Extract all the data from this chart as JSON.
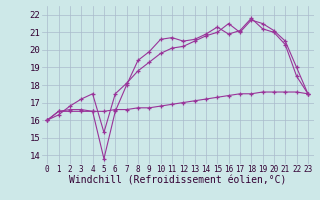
{
  "background_color": "#cde8e8",
  "grid_color": "#aabbcc",
  "line_color": "#993399",
  "xlabel": "Windchill (Refroidissement éolien,°C)",
  "xlabel_fontsize": 7,
  "ytick_fontsize": 6.5,
  "xtick_fontsize": 5.5,
  "ylim": [
    13.5,
    22.5
  ],
  "xlim": [
    -0.5,
    23.5
  ],
  "yticks": [
    14,
    15,
    16,
    17,
    18,
    19,
    20,
    21,
    22
  ],
  "xticks": [
    0,
    1,
    2,
    3,
    4,
    5,
    6,
    7,
    8,
    9,
    10,
    11,
    12,
    13,
    14,
    15,
    16,
    17,
    18,
    19,
    20,
    21,
    22,
    23
  ],
  "line1_x": [
    0,
    1,
    2,
    3,
    4,
    5,
    6,
    7,
    8,
    9,
    10,
    11,
    12,
    13,
    14,
    15,
    16,
    17,
    18,
    19,
    20,
    21,
    22,
    23
  ],
  "line1_y": [
    16.0,
    16.5,
    16.5,
    16.5,
    16.5,
    16.5,
    16.6,
    16.6,
    16.7,
    16.7,
    16.8,
    16.9,
    17.0,
    17.1,
    17.2,
    17.3,
    17.4,
    17.5,
    17.5,
    17.6,
    17.6,
    17.6,
    17.6,
    17.5
  ],
  "line2_x": [
    0,
    1,
    2,
    3,
    4,
    5,
    6,
    7,
    8,
    9,
    10,
    11,
    12,
    13,
    14,
    15,
    16,
    17,
    18,
    19,
    20,
    21,
    22,
    23
  ],
  "line2_y": [
    16.0,
    16.5,
    16.6,
    16.6,
    16.5,
    13.8,
    16.5,
    18.0,
    19.4,
    19.9,
    20.6,
    20.7,
    20.5,
    20.6,
    20.9,
    21.3,
    20.9,
    21.1,
    21.8,
    21.2,
    21.0,
    20.3,
    18.5,
    17.5
  ],
  "line3_x": [
    0,
    1,
    2,
    3,
    4,
    5,
    6,
    7,
    8,
    9,
    10,
    11,
    12,
    13,
    14,
    15,
    16,
    17,
    18,
    19,
    20,
    21,
    22,
    23
  ],
  "line3_y": [
    16.0,
    16.3,
    16.8,
    17.2,
    17.5,
    15.3,
    17.5,
    18.1,
    18.8,
    19.3,
    19.8,
    20.1,
    20.2,
    20.5,
    20.8,
    21.0,
    21.5,
    21.0,
    21.7,
    21.5,
    21.1,
    20.5,
    19.0,
    17.5
  ]
}
